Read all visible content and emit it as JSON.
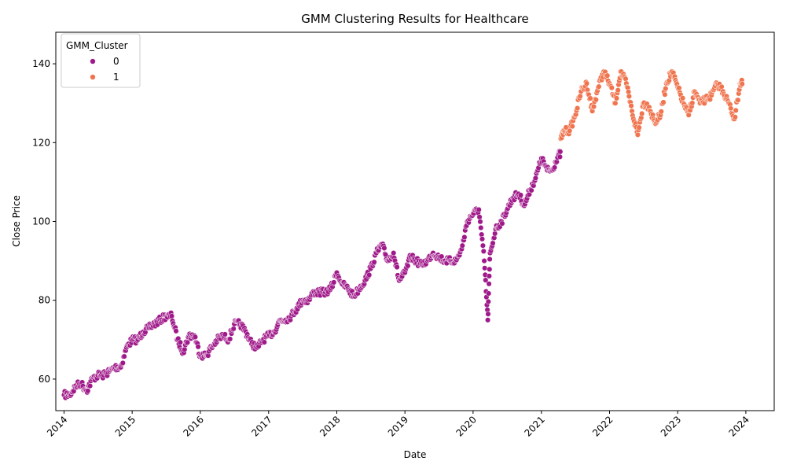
{
  "chart_data": {
    "type": "scatter",
    "title": "GMM Clustering Results for Healthcare",
    "xlabel": "Date",
    "ylabel": "Close Price",
    "xlim": [
      "2013-11-18",
      "2024-06-01"
    ],
    "ylim": [
      52,
      148
    ],
    "x_ticks": [
      "2014",
      "2015",
      "2016",
      "2017",
      "2018",
      "2019",
      "2020",
      "2021",
      "2022",
      "2023",
      "2024"
    ],
    "y_ticks": [
      60,
      80,
      100,
      120,
      140
    ],
    "grid": false,
    "legend": {
      "title": "GMM_Cluster",
      "placement": "top-left",
      "entries": [
        {
          "label": "0",
          "color": "#a0198a"
        },
        {
          "label": "1",
          "color": "#f0744e"
        }
      ]
    },
    "series": [
      {
        "name": "0",
        "color": "#a0198a",
        "x": [
          "2014-01-01",
          "2014-02-01",
          "2014-03-01",
          "2014-04-01",
          "2014-05-01",
          "2014-06-01",
          "2014-07-01",
          "2014-08-01",
          "2014-09-01",
          "2014-10-01",
          "2014-11-01",
          "2014-12-01",
          "2015-01-01",
          "2015-02-01",
          "2015-03-01",
          "2015-04-01",
          "2015-05-01",
          "2015-06-01",
          "2015-07-01",
          "2015-08-01",
          "2015-09-01",
          "2015-10-01",
          "2015-11-01",
          "2015-12-01",
          "2016-01-01",
          "2016-02-01",
          "2016-03-01",
          "2016-04-01",
          "2016-05-01",
          "2016-06-01",
          "2016-07-01",
          "2016-08-01",
          "2016-09-01",
          "2016-10-01",
          "2016-11-01",
          "2016-12-01",
          "2017-01-01",
          "2017-02-01",
          "2017-03-01",
          "2017-04-01",
          "2017-05-01",
          "2017-06-01",
          "2017-07-01",
          "2017-08-01",
          "2017-09-01",
          "2017-10-01",
          "2017-11-01",
          "2017-12-01",
          "2018-01-01",
          "2018-02-01",
          "2018-03-01",
          "2018-04-01",
          "2018-05-01",
          "2018-06-01",
          "2018-07-01",
          "2018-08-01",
          "2018-09-01",
          "2018-10-01",
          "2018-11-01",
          "2018-12-01",
          "2019-01-01",
          "2019-02-01",
          "2019-03-01",
          "2019-04-01",
          "2019-05-01",
          "2019-06-01",
          "2019-07-01",
          "2019-08-01",
          "2019-09-01",
          "2019-10-01",
          "2019-11-01",
          "2019-12-01",
          "2020-01-01",
          "2020-02-01",
          "2020-03-01",
          "2020-03-20",
          "2020-04-01",
          "2020-05-01",
          "2020-06-01",
          "2020-07-01",
          "2020-08-01",
          "2020-09-01",
          "2020-10-01",
          "2020-11-01",
          "2020-12-01",
          "2021-01-01",
          "2021-02-01",
          "2021-03-01",
          "2021-04-01"
        ],
        "y": [
          56,
          56,
          58,
          59,
          57,
          60,
          61,
          61,
          62,
          63,
          63,
          68,
          70,
          70,
          72,
          73,
          74,
          75,
          76,
          76,
          70,
          67,
          71,
          71,
          66,
          66,
          68,
          70,
          71,
          70,
          74,
          74,
          72,
          69,
          68,
          70,
          71,
          72,
          75,
          75,
          76,
          78,
          80,
          80,
          82,
          82,
          82,
          83,
          87,
          84,
          83,
          81,
          83,
          85,
          88,
          92,
          94,
          90,
          92,
          85,
          87,
          91,
          90,
          89,
          90,
          92,
          91,
          90,
          90,
          90,
          93,
          100,
          102,
          103,
          90,
          75,
          92,
          98,
          100,
          103,
          106,
          107,
          104,
          108,
          111,
          116,
          113,
          113,
          117
        ]
      },
      {
        "name": "1",
        "color": "#f0744e",
        "x": [
          "2021-04-15",
          "2021-05-01",
          "2021-06-01",
          "2021-07-01",
          "2021-08-01",
          "2021-09-01",
          "2021-10-01",
          "2021-11-01",
          "2021-12-01",
          "2022-01-01",
          "2022-02-01",
          "2022-03-01",
          "2022-04-01",
          "2022-05-01",
          "2022-06-01",
          "2022-07-01",
          "2022-08-01",
          "2022-09-01",
          "2022-10-01",
          "2022-11-01",
          "2022-12-01",
          "2023-01-01",
          "2023-02-01",
          "2023-03-01",
          "2023-04-01",
          "2023-05-01",
          "2023-06-01",
          "2023-07-01",
          "2023-08-01",
          "2023-09-01",
          "2023-10-01",
          "2023-11-01",
          "2023-12-01"
        ],
        "y": [
          121,
          123,
          123,
          127,
          133,
          135,
          128,
          134,
          138,
          135,
          130,
          138,
          135,
          128,
          122,
          130,
          129,
          125,
          127,
          135,
          138,
          134,
          130,
          127,
          133,
          130,
          131,
          132,
          135,
          133,
          130,
          126,
          135
        ]
      }
    ]
  }
}
